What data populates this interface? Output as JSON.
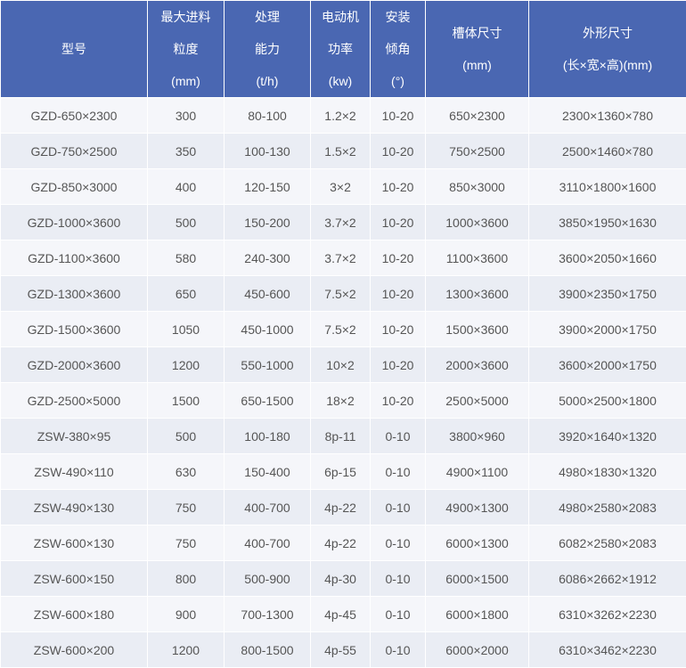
{
  "header": [
    [
      "型号"
    ],
    [
      "最大进料",
      "粒度",
      "(mm)"
    ],
    [
      "处理",
      "能力",
      "(t/h)"
    ],
    [
      "电动机",
      "功率",
      "(kw)"
    ],
    [
      "安装",
      "倾角",
      "(°)"
    ],
    [
      "槽体尺寸",
      "(mm)"
    ],
    [
      "外形尺寸",
      "(长×宽×高)(mm)"
    ]
  ],
  "rows": [
    [
      "GZD-650×2300",
      "300",
      "80-100",
      "1.2×2",
      "10-20",
      "650×2300",
      "2300×1360×780"
    ],
    [
      "GZD-750×2500",
      "350",
      "100-130",
      "1.5×2",
      "10-20",
      "750×2500",
      "2500×1460×780"
    ],
    [
      "GZD-850×3000",
      "400",
      "120-150",
      "3×2",
      "10-20",
      "850×3000",
      "3110×1800×1600"
    ],
    [
      "GZD-1000×3600",
      "500",
      "150-200",
      "3.7×2",
      "10-20",
      "1000×3600",
      "3850×1950×1630"
    ],
    [
      "GZD-1100×3600",
      "580",
      "240-300",
      "3.7×2",
      "10-20",
      "1100×3600",
      "3600×2050×1660"
    ],
    [
      "GZD-1300×3600",
      "650",
      "450-600",
      "7.5×2",
      "10-20",
      "1300×3600",
      "3900×2350×1750"
    ],
    [
      "GZD-1500×3600",
      "1050",
      "450-1000",
      "7.5×2",
      "10-20",
      "1500×3600",
      "3900×2000×1750"
    ],
    [
      "GZD-2000×3600",
      "1200",
      "550-1000",
      "10×2",
      "10-20",
      "2000×3600",
      "3600×2000×1750"
    ],
    [
      "GZD-2500×5000",
      "1500",
      "650-1500",
      "18×2",
      "10-20",
      "2500×5000",
      "5000×2500×1800"
    ],
    [
      "ZSW-380×95",
      "500",
      "100-180",
      "8p-11",
      "0-10",
      "3800×960",
      "3920×1640×1320"
    ],
    [
      "ZSW-490×110",
      "630",
      "150-400",
      "6p-15",
      "0-10",
      "4900×1100",
      "4980×1830×1320"
    ],
    [
      "ZSW-490×130",
      "750",
      "400-700",
      "4p-22",
      "0-10",
      "4900×1300",
      "4980×2580×2083"
    ],
    [
      "ZSW-600×130",
      "750",
      "400-700",
      "4p-22",
      "0-10",
      "6000×1300",
      "6082×2580×2083"
    ],
    [
      "ZSW-600×150",
      "800",
      "500-900",
      "4p-30",
      "0-10",
      "6000×1500",
      "6086×2662×1912"
    ],
    [
      "ZSW-600×180",
      "900",
      "700-1300",
      "4p-45",
      "0-10",
      "6000×1800",
      "6310×3262×2230"
    ],
    [
      "ZSW-600×200",
      "1200",
      "800-1500",
      "4p-55",
      "0-10",
      "6000×2000",
      "6310×3462×2230"
    ]
  ],
  "colors": {
    "header_bg": "#4a67b2",
    "row_light": "#f5f6fa",
    "row_dark": "#eaedf4",
    "text": "#555555"
  }
}
